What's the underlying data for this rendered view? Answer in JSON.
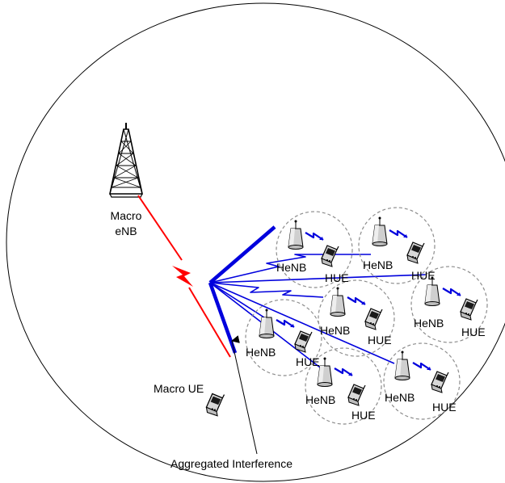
{
  "labels": {
    "macro_enb": [
      "Macro",
      "eNB"
    ],
    "macro_ue": "Macro UE",
    "aggregated": "Aggregated  Interference"
  },
  "cells": [
    {
      "bs": "HeNB",
      "ue": "HUE"
    },
    {
      "bs": "HeNB",
      "ue": "HUE"
    },
    {
      "bs": "HeNB",
      "ue": "HUE"
    },
    {
      "bs": "HeNB",
      "ue": "HUE"
    },
    {
      "bs": "HeNB",
      "ue": "HUE"
    },
    {
      "bs": "HeNB",
      "ue": "HUE"
    },
    {
      "bs": "HeNB",
      "ue": "HUE"
    }
  ],
  "colors": {
    "macro_link": "#ff0000",
    "femto_link": "#0000dd",
    "cell_border": "#8c8c8c"
  }
}
